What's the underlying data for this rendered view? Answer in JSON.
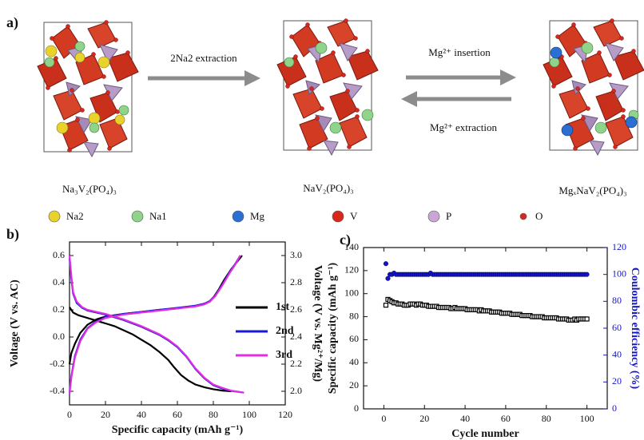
{
  "panel_a": {
    "label": "a)",
    "structures": [
      "Na₃V₂(PO₄)₃",
      "NaV₂(PO₄)₃",
      "MgₓNaV₂(PO₄)₃"
    ],
    "arrows": [
      "2Na2 extraction",
      "Mg²⁺ insertion",
      "Mg²⁺ extraction"
    ],
    "legend": [
      {
        "label": "Na2",
        "color": "#e9d22c"
      },
      {
        "label": "Na1",
        "color": "#8fd48a"
      },
      {
        "label": "Mg",
        "color": "#2a6fd1"
      },
      {
        "label": "V",
        "color": "#d8281c"
      },
      {
        "label": "P",
        "color": "#c9a6d6"
      },
      {
        "label": "O",
        "color": "#d8281c"
      }
    ]
  },
  "chart_data": [
    {
      "type": "line",
      "panel_label": "b)",
      "xlabel": "Specific capacity (mAh g⁻¹)",
      "ylabel": "Voltage (V vs. AC)",
      "y2label": "Voltage (V vs. Mg²⁺/Mg)",
      "xlim": [
        0,
        120
      ],
      "xticks": [
        0,
        20,
        40,
        60,
        80,
        100,
        120
      ],
      "ylim": [
        -0.5,
        0.7
      ],
      "yticks": [
        -0.4,
        -0.2,
        {
          "value": 0,
          "label": "0.0"
        },
        0.2,
        0.4,
        0.6
      ],
      "y2lim": [
        1.9,
        3.1
      ],
      "y2ticks": [
        {
          "value": 2,
          "label": "2.0"
        },
        2.2,
        2.4,
        2.6,
        2.8,
        {
          "value": 3,
          "label": "3.0"
        }
      ],
      "legend": "center right",
      "series": [
        {
          "name": "1st",
          "color": "#000000",
          "x": [
            0,
            2,
            5,
            10,
            15,
            20,
            25,
            30,
            35,
            40,
            45,
            50,
            55,
            58,
            62,
            66,
            70,
            75,
            80,
            85,
            90,
            null,
            0,
            1,
            3,
            6,
            10,
            15,
            20,
            30,
            40,
            50,
            60,
            70,
            75,
            78,
            80,
            83,
            86,
            90,
            93,
            96
          ],
          "values": [
            0.22,
            0.18,
            0.16,
            0.14,
            0.12,
            0.1,
            0.08,
            0.05,
            0.02,
            -0.02,
            -0.06,
            -0.11,
            -0.17,
            -0.22,
            -0.28,
            -0.32,
            -0.35,
            -0.37,
            -0.385,
            -0.395,
            -0.4,
            null,
            -0.2,
            -0.12,
            -0.05,
            0.03,
            0.09,
            0.13,
            0.15,
            0.17,
            0.185,
            0.2,
            0.21,
            0.23,
            0.245,
            0.26,
            0.29,
            0.35,
            0.42,
            0.5,
            0.55,
            0.6
          ]
        },
        {
          "name": "2nd",
          "color": "#1a1ad6",
          "x": [
            0,
            1,
            2,
            4,
            7,
            10,
            15,
            20,
            30,
            40,
            50,
            55,
            60,
            65,
            70,
            75,
            80,
            85,
            90,
            97,
            null,
            0,
            1,
            3,
            6,
            10,
            15,
            20,
            30,
            40,
            50,
            60,
            70,
            75,
            78,
            81,
            85,
            89,
            92,
            95
          ],
          "values": [
            0.58,
            0.43,
            0.32,
            0.25,
            0.215,
            0.195,
            0.18,
            0.165,
            0.125,
            0.075,
            0.015,
            -0.025,
            -0.075,
            -0.145,
            -0.235,
            -0.305,
            -0.355,
            -0.38,
            -0.397,
            -0.41,
            null,
            -0.41,
            -0.29,
            -0.14,
            -0.02,
            0.065,
            0.115,
            0.145,
            0.17,
            0.185,
            0.2,
            0.215,
            0.23,
            0.245,
            0.265,
            0.305,
            0.385,
            0.475,
            0.535,
            0.6
          ]
        },
        {
          "name": "3rd",
          "color": "#e22de0",
          "x": [
            0,
            1,
            2,
            4,
            7,
            10,
            15,
            20,
            30,
            40,
            50,
            55,
            60,
            65,
            70,
            75,
            80,
            85,
            90,
            97,
            null,
            0,
            1,
            3,
            6,
            10,
            15,
            20,
            30,
            40,
            50,
            60,
            70,
            75,
            78,
            81,
            85,
            89,
            92,
            95
          ],
          "values": [
            0.6,
            0.45,
            0.33,
            0.26,
            0.22,
            0.2,
            0.185,
            0.17,
            0.13,
            0.08,
            0.02,
            -0.02,
            -0.07,
            -0.14,
            -0.23,
            -0.3,
            -0.35,
            -0.375,
            -0.395,
            -0.41,
            null,
            -0.42,
            -0.3,
            -0.15,
            -0.03,
            0.06,
            0.11,
            0.14,
            0.165,
            0.18,
            0.195,
            0.21,
            0.225,
            0.24,
            0.26,
            0.3,
            0.38,
            0.47,
            0.53,
            0.6
          ]
        }
      ]
    },
    {
      "type": "scatter",
      "panel_label": "c)",
      "xlabel": "Cycle number",
      "ylabel": "Specific capacity (mAh g⁻¹)",
      "y2label": "Coulombic efficiency (%)",
      "xlim": [
        -10,
        110
      ],
      "xticks": [
        0,
        20,
        40,
        60,
        80,
        100
      ],
      "ylim": [
        0,
        140
      ],
      "yticks": [
        0,
        20,
        40,
        60,
        80,
        100,
        120,
        140
      ],
      "y2lim": [
        0,
        120
      ],
      "y2ticks": [
        0,
        20,
        40,
        60,
        80,
        100,
        120
      ],
      "series": [
        {
          "color": "#000000",
          "marker": "square",
          "x": [
            1,
            2,
            3,
            4,
            5,
            6,
            7,
            8,
            9,
            10,
            11,
            12,
            13,
            14,
            15,
            16,
            17,
            18,
            19,
            20,
            21,
            22,
            23,
            24,
            25,
            26,
            27,
            28,
            29,
            30,
            31,
            32,
            33,
            34,
            35,
            36,
            37,
            38,
            39,
            40,
            41,
            42,
            43,
            44,
            45,
            46,
            47,
            48,
            49,
            50,
            51,
            52,
            53,
            54,
            55,
            56,
            57,
            58,
            59,
            60,
            61,
            62,
            63,
            64,
            65,
            66,
            67,
            68,
            69,
            70,
            71,
            72,
            73,
            74,
            75,
            76,
            77,
            78,
            79,
            80,
            81,
            82,
            83,
            84,
            85,
            86,
            87,
            88,
            89,
            90,
            91,
            92,
            93,
            94,
            95,
            96,
            97,
            98,
            99,
            100
          ],
          "values": [
            90,
            95,
            94,
            93,
            92,
            92,
            91,
            91,
            91,
            90,
            90,
            90,
            91,
            91,
            91,
            90,
            91,
            91,
            90,
            90,
            90,
            89,
            89,
            89,
            89,
            89,
            88,
            88,
            88,
            88,
            88,
            88,
            87,
            87,
            88,
            87,
            87,
            87,
            87,
            87,
            86,
            86,
            86,
            86,
            86,
            86,
            85,
            86,
            85,
            85,
            85,
            85,
            84,
            84,
            84,
            84,
            84,
            83,
            83,
            83,
            83,
            83,
            82,
            82,
            82,
            82,
            82,
            81,
            81,
            81,
            81,
            81,
            80,
            80,
            80,
            80,
            80,
            80,
            79,
            79,
            79,
            79,
            79,
            79,
            79,
            78,
            78,
            78,
            78,
            78,
            77,
            77,
            77,
            78,
            77,
            78,
            78,
            78,
            78,
            78
          ]
        },
        {
          "color": "#1515c8",
          "marker": "circle",
          "axis": "y2",
          "x": [
            1,
            2,
            3,
            4,
            5,
            6,
            7,
            8,
            9,
            10,
            11,
            12,
            13,
            14,
            15,
            16,
            17,
            18,
            19,
            20,
            21,
            22,
            23,
            24,
            25,
            26,
            27,
            28,
            29,
            30,
            31,
            32,
            33,
            34,
            35,
            36,
            37,
            38,
            39,
            40,
            41,
            42,
            43,
            44,
            45,
            46,
            47,
            48,
            49,
            50,
            51,
            52,
            53,
            54,
            55,
            56,
            57,
            58,
            59,
            60,
            61,
            62,
            63,
            64,
            65,
            66,
            67,
            68,
            69,
            70,
            71,
            72,
            73,
            74,
            75,
            76,
            77,
            78,
            79,
            80,
            81,
            82,
            83,
            84,
            85,
            86,
            87,
            88,
            89,
            90,
            91,
            92,
            93,
            94,
            95,
            96,
            97,
            98,
            99,
            100
          ],
          "values": [
            108,
            97,
            100,
            100,
            101,
            100,
            100,
            100,
            100,
            100,
            100,
            100,
            100,
            100,
            100,
            100,
            100,
            100,
            100,
            100,
            100,
            100,
            101,
            100,
            100,
            100,
            100,
            100,
            100,
            100,
            100,
            100,
            100,
            100,
            100,
            100,
            100,
            100,
            100,
            100,
            100,
            100,
            100,
            100,
            100,
            100,
            100,
            100,
            100,
            100,
            100,
            100,
            100,
            100,
            100,
            100,
            100,
            100,
            100,
            100,
            100,
            100,
            100,
            100,
            100,
            100,
            100,
            100,
            100,
            100,
            100,
            100,
            100,
            100,
            100,
            100,
            100,
            100,
            100,
            100,
            100,
            100,
            100,
            100,
            100,
            100,
            100,
            100,
            100,
            100,
            100,
            100,
            100,
            100,
            100,
            100,
            100,
            100,
            100,
            100
          ]
        }
      ]
    }
  ]
}
